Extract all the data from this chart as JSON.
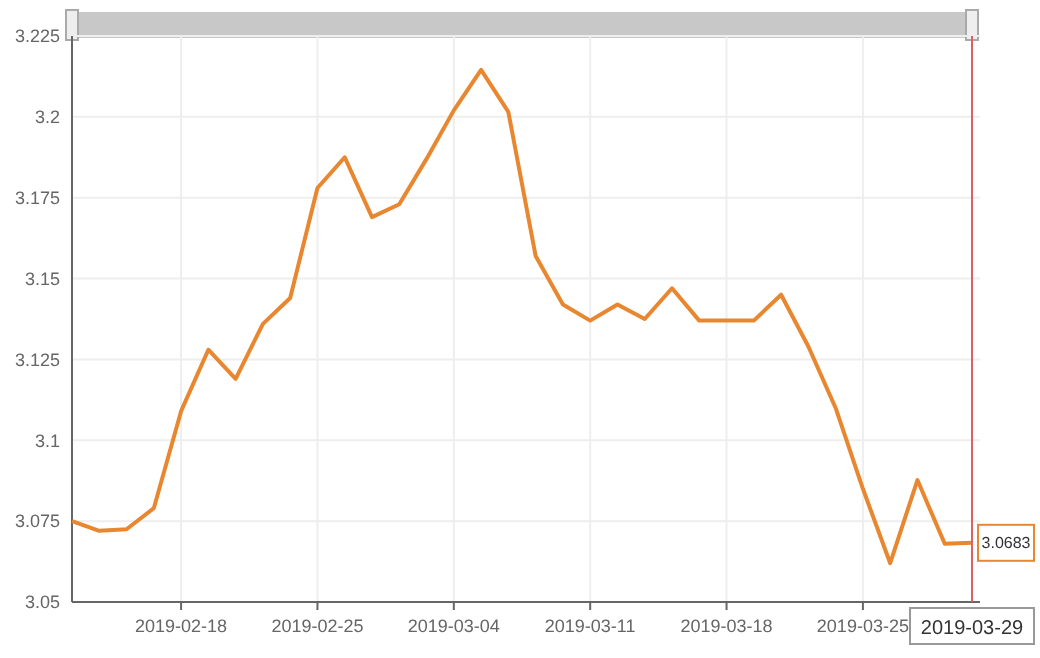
{
  "chart_data": {
    "type": "line",
    "categories": [
      null,
      null,
      null,
      null,
      "2019-02-18",
      null,
      null,
      null,
      null,
      "2019-02-25",
      null,
      null,
      null,
      null,
      "2019-03-04",
      null,
      null,
      null,
      null,
      "2019-03-11",
      null,
      null,
      null,
      null,
      "2019-03-18",
      null,
      null,
      null,
      null,
      "2019-03-25",
      null,
      null,
      null,
      "2019-03-29"
    ],
    "series": [
      {
        "color": "#e8872f",
        "values": [
          3.075,
          3.072,
          3.0725,
          3.079,
          3.109,
          3.128,
          3.119,
          3.136,
          3.144,
          3.178,
          3.1875,
          3.169,
          3.173,
          3.187,
          3.202,
          3.2145,
          3.2015,
          3.157,
          3.142,
          3.137,
          3.142,
          3.1375,
          3.147,
          3.137,
          3.137,
          3.137,
          3.145,
          3.129,
          3.11,
          3.085,
          3.062,
          3.0877,
          3.068,
          3.0683
        ]
      }
    ],
    "ylim": [
      3.05,
      3.225
    ],
    "yticks": [
      3.05,
      3.075,
      3.1,
      3.125,
      3.15,
      3.175,
      3.2,
      3.225
    ],
    "grid": true,
    "marker": "none",
    "line_style": "solid",
    "ref_lines": [
      {
        "axis": "x",
        "value": "2019-03-29",
        "color": "#e06060"
      }
    ],
    "annotations": [
      {
        "text": "3.0683",
        "x": "2019-03-29",
        "y": 3.0683
      }
    ]
  }
}
